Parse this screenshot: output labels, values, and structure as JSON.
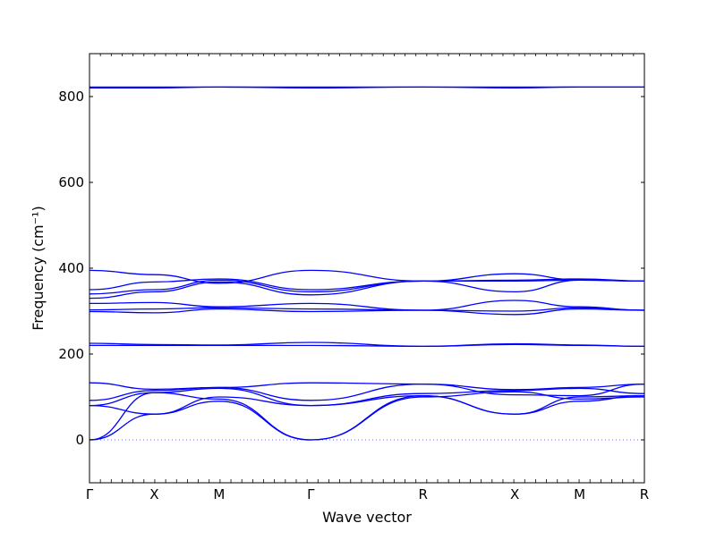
{
  "chart_data": {
    "type": "line",
    "xlabel": "Wave vector",
    "ylabel": "Frequency (cm⁻¹)",
    "ylim": [
      -100,
      900
    ],
    "yticks": [
      0,
      200,
      400,
      600,
      800
    ],
    "xlim": [
      0,
      5
    ],
    "kpoints": [
      {
        "label": "Γ",
        "x": 0
      },
      {
        "label": "X",
        "x": 0.5
      },
      {
        "label": "M",
        "x": 1.0
      },
      {
        "label": "Γ",
        "x": 1.7071
      },
      {
        "label": "R",
        "x": 2.5731
      },
      {
        "label": "X",
        "x": 3.2802
      },
      {
        "label": "M",
        "x": 3.7802
      },
      {
        "label": "R",
        "x": 4.2802
      }
    ],
    "line_color": "#0000ff",
    "zero_line_color": "#6a6aff",
    "series": [
      {
        "x": [
          0,
          0.5,
          1.0,
          1.7071,
          2.5731,
          3.2802,
          3.7802,
          4.2802
        ],
        "values": [
          0,
          60,
          90,
          0,
          103,
          60,
          90,
          103
        ]
      },
      {
        "x": [
          0,
          0.5,
          1.0,
          1.7071,
          2.5731,
          3.2802,
          3.7802,
          4.2802
        ],
        "values": [
          0,
          110,
          95,
          0,
          100,
          112,
          95,
          100
        ]
      },
      {
        "x": [
          0,
          0.5,
          1.0,
          1.7071,
          2.5731,
          3.2802,
          3.7802,
          4.2802
        ],
        "values": [
          80,
          60,
          100,
          80,
          103,
          60,
          100,
          103
        ]
      },
      {
        "x": [
          0,
          0.5,
          1.0,
          1.7071,
          2.5731,
          3.2802,
          3.7802,
          4.2802
        ],
        "values": [
          80,
          110,
          120,
          80,
          108,
          115,
          120,
          108
        ]
      },
      {
        "x": [
          0,
          0.5,
          1.0,
          1.7071,
          2.5731,
          3.2802,
          3.7802,
          4.2802
        ],
        "values": [
          92,
          115,
          122,
          92,
          130,
          105,
          103,
          130
        ]
      },
      {
        "x": [
          0,
          0.5,
          1.0,
          1.7071,
          2.5731,
          3.2802,
          3.7802,
          4.2802
        ],
        "values": [
          133,
          118,
          122,
          133,
          130,
          117,
          122,
          130
        ]
      },
      {
        "x": [
          0,
          0.5,
          1.0,
          1.7071,
          2.5731,
          3.2802,
          3.7802,
          4.2802
        ],
        "values": [
          220,
          220,
          220,
          220,
          218,
          222,
          220,
          218
        ]
      },
      {
        "x": [
          0,
          0.5,
          1.0,
          1.7071,
          2.5731,
          3.2802,
          3.7802,
          4.2802
        ],
        "values": [
          225,
          222,
          221,
          227,
          218,
          224,
          221,
          218
        ]
      },
      {
        "x": [
          0,
          0.5,
          1.0,
          1.7071,
          2.5731,
          3.2802,
          3.7802,
          4.2802
        ],
        "values": [
          299,
          296,
          305,
          299,
          302,
          292,
          305,
          302
        ]
      },
      {
        "x": [
          0,
          0.5,
          1.0,
          1.7071,
          2.5731,
          3.2802,
          3.7802,
          4.2802
        ],
        "values": [
          303,
          305,
          308,
          305,
          302,
          300,
          308,
          302
        ]
      },
      {
        "x": [
          0,
          0.5,
          1.0,
          1.7071,
          2.5731,
          3.2802,
          3.7802,
          4.2802
        ],
        "values": [
          318,
          320,
          310,
          318,
          302,
          325,
          310,
          302
        ]
      },
      {
        "x": [
          0,
          0.5,
          1.0,
          1.7071,
          2.5731,
          3.2802,
          3.7802,
          4.2802
        ],
        "values": [
          330,
          345,
          368,
          338,
          370,
          345,
          372,
          370
        ]
      },
      {
        "x": [
          0,
          0.5,
          1.0,
          1.7071,
          2.5731,
          3.2802,
          3.7802,
          4.2802
        ],
        "values": [
          340,
          350,
          372,
          345,
          370,
          370,
          372,
          370
        ]
      },
      {
        "x": [
          0,
          0.5,
          1.0,
          1.7071,
          2.5731,
          3.2802,
          3.7802,
          4.2802
        ],
        "values": [
          350,
          368,
          375,
          350,
          370,
          372,
          375,
          370
        ]
      },
      {
        "x": [
          0,
          0.5,
          1.0,
          1.7071,
          2.5731,
          3.2802,
          3.7802,
          4.2802
        ],
        "values": [
          395,
          385,
          365,
          395,
          370,
          387,
          373,
          370
        ]
      },
      {
        "x": [
          0,
          0.5,
          1.0,
          1.7071,
          2.5731,
          3.2802,
          3.7802,
          4.2802
        ],
        "values": [
          820,
          820,
          822,
          820,
          822,
          820,
          822,
          822
        ]
      },
      {
        "x": [
          0,
          0.5,
          1.0,
          1.7071,
          2.5731,
          3.2802,
          3.7802,
          4.2802
        ],
        "values": [
          822,
          822,
          822,
          822,
          822,
          822,
          822,
          822
        ]
      }
    ]
  }
}
